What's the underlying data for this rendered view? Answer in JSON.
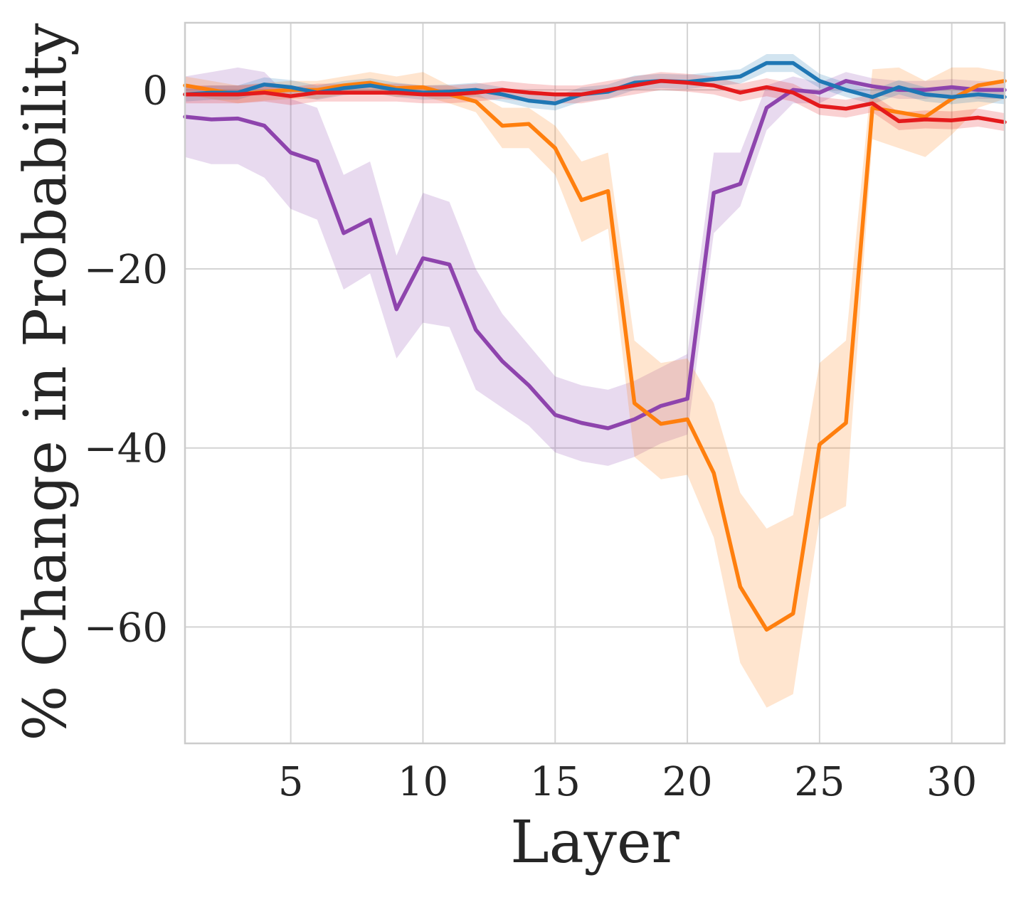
{
  "chart_data": {
    "type": "line",
    "title": "",
    "xlabel": "Layer",
    "ylabel": "% Change in Probability",
    "xlim": [
      1,
      32
    ],
    "ylim": [
      -73,
      7.5
    ],
    "xticks": [
      5,
      10,
      15,
      20,
      25,
      30
    ],
    "xtick_labels": [
      "5",
      "10",
      "15",
      "20",
      "25",
      "30"
    ],
    "yticks": [
      0,
      -20,
      -40,
      -60
    ],
    "ytick_labels": [
      "0",
      "−20",
      "−40",
      "−60"
    ],
    "grid": true,
    "x": [
      1,
      2,
      3,
      4,
      5,
      6,
      7,
      8,
      9,
      10,
      11,
      12,
      13,
      14,
      15,
      16,
      17,
      18,
      19,
      20,
      21,
      22,
      23,
      24,
      25,
      26,
      27,
      28,
      29,
      30,
      31,
      32
    ],
    "series": [
      {
        "name": "purple",
        "color": "#8e44ad",
        "values": [
          -3,
          -3.3,
          -3.2,
          -4,
          -7,
          -8,
          -16,
          -14.5,
          -24.5,
          -18.8,
          -19.5,
          -26.8,
          -30.3,
          -33,
          -36.3,
          -37.2,
          -37.8,
          -36.8,
          -35.3,
          -34.5,
          -11.5,
          -10.5,
          -2,
          0,
          -0.3,
          1,
          0.4,
          0,
          0,
          0.3,
          0,
          0
        ],
        "lower": [
          -7.5,
          -8.3,
          -8.3,
          -9.8,
          -13.3,
          -14.5,
          -22.3,
          -20.5,
          -30,
          -26,
          -26.5,
          -33.5,
          -35.5,
          -37.5,
          -40.5,
          -41.5,
          -42,
          -41,
          -39.5,
          -38.5,
          -16,
          -13,
          -4.5,
          -1.5,
          -1.5,
          0,
          -0.5,
          -1,
          -1,
          -0.5,
          -1,
          -1
        ],
        "upper": [
          1.5,
          2,
          2.5,
          2,
          -1,
          -2,
          -9.5,
          -8,
          -18.5,
          -11.5,
          -12.5,
          -20,
          -25,
          -28.5,
          -32,
          -33,
          -33.5,
          -32.5,
          -31,
          -29.5,
          -7,
          -7,
          0.5,
          1.5,
          0.8,
          2,
          1.3,
          1,
          1,
          1.2,
          1,
          1
        ]
      },
      {
        "name": "orange",
        "color": "#ff7f0e",
        "values": [
          0.5,
          0,
          -0.5,
          -0.2,
          0,
          0,
          0.5,
          0.8,
          0.2,
          0.3,
          -0.5,
          -1.3,
          -4,
          -3.8,
          -6.5,
          -12.3,
          -11.3,
          -35,
          -37.3,
          -36.8,
          -42.8,
          -55.5,
          -60.3,
          -58.5,
          -39.6,
          -37.2,
          -2,
          -2.5,
          -3,
          -1,
          0.5,
          1
        ],
        "lower": [
          -0.5,
          -1,
          -1.5,
          -1.2,
          -1,
          -1,
          -0.5,
          -0.2,
          -0.8,
          -0.7,
          -1.5,
          -2.5,
          -6.5,
          -6.5,
          -9.5,
          -17,
          -15.5,
          -41,
          -43.5,
          -43,
          -50,
          -64,
          -69,
          -67.5,
          -48,
          -46.5,
          -5.5,
          -6.5,
          -7.5,
          -5,
          -2,
          -1
        ],
        "upper": [
          1.5,
          1,
          0.5,
          0.8,
          1,
          1,
          1.5,
          2,
          1.5,
          2,
          0.5,
          -0.3,
          -2,
          -2,
          -4,
          -8,
          -7,
          -28,
          -30.5,
          -30,
          -35,
          -45,
          -49,
          -47.5,
          -30.5,
          -28,
          2.3,
          2.5,
          1,
          2.5,
          2.5,
          2
        ]
      },
      {
        "name": "blue",
        "color": "#1f77b4",
        "values": [
          -0.5,
          -0.3,
          -0.3,
          0.6,
          0.3,
          -0.3,
          0.2,
          0.5,
          0,
          -0.3,
          -0.2,
          0,
          -0.5,
          -1.2,
          -1.5,
          -0.5,
          -0.2,
          0.8,
          1,
          0.9,
          1.2,
          1.5,
          3,
          3,
          1,
          0,
          -0.8,
          0.3,
          -0.5,
          -0.8,
          -0.5,
          -0.8
        ],
        "lower": [
          -1.3,
          -1.1,
          -1.1,
          -0.2,
          -0.5,
          -1.1,
          -0.6,
          -0.3,
          -0.8,
          -1.1,
          -1,
          -0.8,
          -1.3,
          -2,
          -2.3,
          -1.3,
          -1,
          0,
          0.2,
          0.1,
          0.4,
          0.7,
          2,
          2,
          0.2,
          -0.8,
          -1.6,
          -0.5,
          -1.3,
          -1.6,
          -1.3,
          -1.6
        ],
        "upper": [
          0.3,
          0.5,
          0.5,
          1.4,
          1.1,
          0.5,
          1,
          1.3,
          0.8,
          0.5,
          0.6,
          0.8,
          0.3,
          -0.4,
          -0.7,
          0.3,
          0.6,
          1.6,
          1.8,
          1.7,
          2,
          2.3,
          4,
          4,
          1.8,
          0.8,
          0,
          1.1,
          0.3,
          0,
          0.3,
          0
        ]
      },
      {
        "name": "red",
        "color": "#e41a1c",
        "values": [
          -0.5,
          -0.5,
          -0.5,
          -0.3,
          -0.7,
          -0.3,
          -0.3,
          -0.3,
          -0.3,
          -0.5,
          -0.5,
          -0.3,
          0,
          -0.3,
          -0.5,
          -0.5,
          0,
          0.5,
          1,
          0.8,
          0.5,
          -0.3,
          0.3,
          -0.3,
          -1.8,
          -2.1,
          -1.5,
          -3.5,
          -3.3,
          -3.4,
          -3.1,
          -3.6
        ],
        "lower": [
          -1.5,
          -1.5,
          -1.5,
          -1.3,
          -1.7,
          -1.3,
          -1.3,
          -1.3,
          -1.3,
          -1.5,
          -1.5,
          -1.3,
          -1,
          -1.3,
          -1.5,
          -1.5,
          -1,
          -0.5,
          0,
          -0.2,
          -0.5,
          -1.3,
          -0.7,
          -1.3,
          -2.8,
          -3.1,
          -2.5,
          -4.5,
          -4.3,
          -4.4,
          -4.1,
          -4.6
        ],
        "upper": [
          0.5,
          0.5,
          0.5,
          0.7,
          0.3,
          0.7,
          0.7,
          0.7,
          0.7,
          0.5,
          0.5,
          0.7,
          1,
          0.7,
          0.5,
          0.5,
          1,
          1.5,
          2,
          1.8,
          1.5,
          0.7,
          1.3,
          0.7,
          -0.8,
          -1.1,
          -0.5,
          -2.5,
          -2.3,
          -2.4,
          -2.1,
          -2.6
        ]
      }
    ]
  }
}
